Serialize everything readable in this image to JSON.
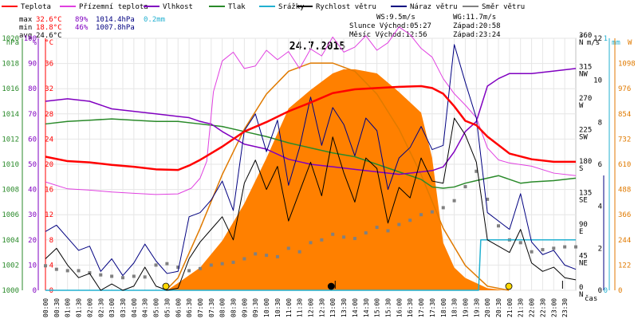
{
  "legend": [
    {
      "label": "Teplota",
      "color": "#ff0000"
    },
    {
      "label": "Přízemní teplota",
      "color": "#e040e0"
    },
    {
      "label": "Vlhkost",
      "color": "#8000c0"
    },
    {
      "label": "Tlak",
      "color": "#2a8a2a"
    },
    {
      "label": "Srážky",
      "color": "#22b0d0"
    },
    {
      "label": "Rychlost větru",
      "color": "#000000"
    },
    {
      "label": "Náraz větru",
      "color": "#000080"
    },
    {
      "label": "Směr větru",
      "color": "#808080"
    }
  ],
  "stats": {
    "max_label": "max",
    "min_label": "min",
    "avg_label": "avg",
    "max_temp": "32.6°C",
    "max_hum": "89%",
    "max_press": "1014.4hPa",
    "max_rain": "0.2mm",
    "min_temp": "18.8°C",
    "min_hum": "46%",
    "min_press": "1007.8hPa",
    "avg_temp": "24.6°C"
  },
  "wind_info": {
    "ws": "WS:9.5m/s",
    "wg": "WG:11.7m/s",
    "sun_rise": "Slunce Východ:05:27",
    "sun_set": "Západ:20:58",
    "moon_rise": "Měsíc  Východ:12:56",
    "moon_set": "Západ:23:24"
  },
  "chart_data": {
    "type": "line",
    "title": "24.7.2015",
    "x_axis_label": "čas",
    "x_ticks": [
      "00:00",
      "00:30",
      "01:00",
      "01:30",
      "02:00",
      "02:30",
      "03:00",
      "03:30",
      "04:00",
      "04:30",
      "05:00",
      "05:30",
      "06:00",
      "06:30",
      "07:00",
      "07:30",
      "08:00",
      "08:30",
      "09:00",
      "09:30",
      "10:00",
      "10:30",
      "11:00",
      "11:30",
      "12:00",
      "12:30",
      "13:00",
      "13:30",
      "14:00",
      "14:30",
      "15:00",
      "15:30",
      "16:00",
      "16:30",
      "17:00",
      "17:30",
      "18:00",
      "18:30",
      "19:00",
      "19:30",
      "20:00",
      "20:30",
      "21:00",
      "21:30",
      "22:00",
      "22:30",
      "23:00",
      "23:30"
    ],
    "axes": {
      "hpa": {
        "label": "hPa",
        "color": "#2a8a2a",
        "range": [
          1000,
          1020
        ],
        "ticks": [
          "1000",
          "1002",
          "1004",
          "1006",
          "1008",
          "1010",
          "1012",
          "1014",
          "1016",
          "1018",
          "1020"
        ]
      },
      "pct": {
        "label": "%",
        "color": "#8000c0",
        "range": [
          0,
          100
        ],
        "ticks": [
          "0",
          "10",
          "20",
          "30",
          "40",
          "50",
          "60",
          "70",
          "80",
          "90",
          "100"
        ]
      },
      "temp": {
        "label": "°C",
        "color": "#ff0000",
        "range": [
          0,
          40
        ],
        "ticks": [
          "0",
          "4",
          "8",
          "12",
          "16",
          "20",
          "24",
          "28",
          "32",
          "36"
        ]
      },
      "dir": {
        "label": "°",
        "range": [
          0,
          360
        ],
        "ticks": [
          {
            "deg": "0",
            "name": "N"
          },
          {
            "deg": "45",
            "name": "NE"
          },
          {
            "deg": "90",
            "name": "E"
          },
          {
            "deg": "135",
            "name": "SE"
          },
          {
            "deg": "180",
            "name": "S"
          },
          {
            "deg": "225",
            "name": "SW"
          },
          {
            "deg": "270",
            "name": "W"
          },
          {
            "deg": "315",
            "name": "NW"
          },
          {
            "deg": "360",
            "name": "N"
          }
        ]
      },
      "ms": {
        "label": "m/s",
        "range": [
          0,
          12
        ],
        "ticks": [
          "0",
          "2",
          "4",
          "6",
          "8",
          "10",
          "12"
        ]
      },
      "mm": {
        "label": "mm",
        "color": "#22b0d0",
        "range": [
          0,
          1
        ],
        "ticks": [
          "0",
          "1"
        ]
      },
      "w": {
        "label": "W",
        "color": "#e07a00",
        "range": [
          0,
          1220
        ],
        "ticks": [
          "0",
          "122",
          "244",
          "366",
          "488",
          "610",
          "732",
          "854",
          "976",
          "1098"
        ]
      }
    },
    "series": [
      {
        "name": "Teplota",
        "axis": "temp",
        "color": "#ff0000",
        "x": [
          0,
          1,
          2,
          3,
          4,
          5,
          6,
          6.5,
          7,
          8,
          9,
          10,
          11,
          12,
          13,
          14,
          15,
          16,
          17,
          17.5,
          18,
          18.5,
          19,
          19.5,
          20,
          21,
          22,
          23,
          24
        ],
        "y": [
          21.2,
          20.5,
          20.3,
          19.9,
          19.6,
          19.2,
          19.1,
          19.8,
          20.7,
          22.8,
          25.2,
          26.7,
          28.4,
          29.8,
          31.3,
          31.9,
          32.1,
          32.3,
          32.4,
          32.1,
          31.2,
          29.2,
          26.9,
          26.2,
          24.4,
          21.7,
          20.8,
          20.4,
          20.4
        ]
      },
      {
        "name": "Přízemní teplota",
        "axis": "temp",
        "color": "#e040e0",
        "x": [
          0,
          1,
          2,
          3,
          4,
          5,
          6,
          6.6,
          7,
          7.3,
          7.6,
          8,
          8.5,
          9,
          9.5,
          10,
          10.5,
          11,
          11.5,
          12,
          12.5,
          13,
          13.5,
          14,
          14.5,
          15,
          15.5,
          16,
          16.5,
          17,
          17.5,
          18,
          18.5,
          19,
          19.5,
          20,
          20.5,
          21,
          22,
          23,
          24
        ],
        "y": [
          17.2,
          16.1,
          15.9,
          15.6,
          15.4,
          15.2,
          15.3,
          16.2,
          17.8,
          20.5,
          31.5,
          36.4,
          37.8,
          35.2,
          35.6,
          38.1,
          36.6,
          37.9,
          35.2,
          38.3,
          37.2,
          40.2,
          37.8,
          38.6,
          40.4,
          38.1,
          39.3,
          41.8,
          40.6,
          38.4,
          37.0,
          33.6,
          31.2,
          29.4,
          27.4,
          22.6,
          20.7,
          20.2,
          19.7,
          18.6,
          18.2
        ]
      },
      {
        "name": "Vlhkost",
        "axis": "pct",
        "color": "#8000c0",
        "x": [
          0,
          1,
          2,
          3,
          4,
          5,
          6,
          6.5,
          7,
          7.5,
          8,
          9,
          10,
          11,
          12,
          13,
          14,
          15,
          16,
          17,
          17.5,
          18,
          18.5,
          19,
          19.5,
          20,
          20.5,
          21,
          22,
          23,
          24
        ],
        "y": [
          75,
          76,
          75,
          72,
          71,
          70,
          69,
          68.5,
          67,
          66,
          63,
          58,
          56,
          52,
          50,
          49,
          48,
          47,
          46,
          47,
          47.5,
          49,
          55,
          63,
          67,
          81,
          84,
          86,
          86,
          87,
          88
        ]
      },
      {
        "name": "Tlak",
        "axis": "hpa",
        "color": "#2a8a2a",
        "x": [
          0,
          1,
          2,
          3,
          4,
          5,
          6,
          7,
          8,
          9,
          10,
          11,
          12,
          13,
          14,
          15,
          16,
          17,
          17.5,
          18,
          18.5,
          19,
          19.5,
          20,
          20.5,
          21,
          21.5,
          22,
          23,
          24
        ],
        "y": [
          1013.2,
          1013.4,
          1013.5,
          1013.6,
          1013.5,
          1013.4,
          1013.4,
          1013.2,
          1013.0,
          1012.6,
          1012.2,
          1011.7,
          1011.3,
          1010.9,
          1010.6,
          1010.0,
          1009.4,
          1008.8,
          1008.2,
          1008.1,
          1008.2,
          1008.5,
          1008.7,
          1008.9,
          1009.1,
          1008.8,
          1008.5,
          1008.6,
          1008.7,
          1008.9
        ]
      },
      {
        "name": "Rychlost větru",
        "axis": "ms",
        "color": "#000000",
        "x": [
          0,
          0.5,
          1,
          1.5,
          2,
          2.5,
          3,
          3.5,
          4,
          4.5,
          5,
          5.5,
          6,
          6.5,
          7,
          7.5,
          8,
          8.5,
          9,
          9.5,
          10,
          10.5,
          11,
          11.5,
          12,
          12.5,
          13,
          13.5,
          14,
          14.5,
          15,
          15.5,
          16,
          16.5,
          17,
          17.5,
          18,
          18.5,
          19,
          19.5,
          20,
          20.5,
          21,
          21.5,
          22,
          22.5,
          23,
          23.5,
          24
        ],
        "y": [
          1.5,
          2.0,
          1.2,
          0.6,
          0.8,
          0.0,
          0.3,
          0.0,
          0.2,
          1.1,
          0.2,
          0.0,
          0.1,
          1.5,
          2.3,
          2.9,
          3.5,
          2.4,
          5.1,
          6.2,
          4.8,
          5.9,
          3.3,
          4.7,
          6.1,
          4.5,
          7.3,
          5.6,
          4.2,
          6.3,
          5.8,
          3.2,
          4.9,
          4.4,
          6.3,
          5.2,
          5.1,
          8.2,
          7.4,
          6.1,
          2.4,
          2.1,
          1.8,
          2.9,
          1.3,
          0.9,
          1.1,
          0.6,
          0.5
        ]
      },
      {
        "name": "Náraz větru",
        "axis": "ms",
        "color": "#000080",
        "x": [
          0,
          0.5,
          1,
          1.5,
          2,
          2.5,
          3,
          3.5,
          4,
          4.5,
          5,
          5.5,
          6,
          6.5,
          7,
          7.5,
          8,
          8.5,
          9,
          9.5,
          10,
          10.5,
          11,
          11.5,
          12,
          12.5,
          13,
          13.5,
          14,
          14.5,
          15,
          15.5,
          16,
          16.5,
          17,
          17.5,
          18,
          18.5,
          19,
          19.5,
          20,
          20.5,
          21,
          21.5,
          22,
          22.5,
          23,
          23.5,
          24
        ],
        "y": [
          2.8,
          3.1,
          2.5,
          1.9,
          2.1,
          0.9,
          1.5,
          0.7,
          1.3,
          2.2,
          1.4,
          0.8,
          0.9,
          3.5,
          3.7,
          4.3,
          5.2,
          3.8,
          7.6,
          8.4,
          6.6,
          8.1,
          5.0,
          6.8,
          9.2,
          6.9,
          8.7,
          7.9,
          6.4,
          8.2,
          7.6,
          4.8,
          6.3,
          6.8,
          7.8,
          6.7,
          6.9,
          11.7,
          9.9,
          8.2,
          3.7,
          3.3,
          2.9,
          4.6,
          2.3,
          1.7,
          1.9,
          1.2,
          1.0
        ]
      },
      {
        "name": "Srážky",
        "axis": "mm",
        "color": "#22b0d0",
        "x": [
          0,
          19.6,
          19.7,
          21,
          21.2,
          24
        ],
        "y": [
          0,
          0,
          0.2,
          0.2,
          0.2,
          0.2
        ]
      },
      {
        "name": "Solar",
        "axis": "w",
        "color": "#ff8000",
        "x": [
          5.5,
          6,
          7,
          8,
          9,
          10,
          11,
          12,
          13,
          13.5,
          14,
          15,
          16,
          17,
          17.5,
          18,
          18.5,
          19,
          20,
          20.8
        ],
        "y": [
          0,
          35,
          110,
          240,
          420,
          640,
          880,
          970,
          1050,
          1070,
          1070,
          1050,
          960,
          860,
          640,
          230,
          110,
          60,
          10,
          0
        ]
      },
      {
        "name": "Solar max",
        "axis": "w",
        "color": "#ff8000",
        "x": [
          5.45,
          6,
          7,
          8,
          9,
          10,
          11,
          12,
          13,
          14,
          15,
          16,
          17,
          18,
          19,
          20,
          20.97
        ],
        "y": [
          0,
          60,
          300,
          560,
          780,
          950,
          1060,
          1100,
          1100,
          1060,
          950,
          780,
          560,
          300,
          120,
          20,
          0
        ]
      },
      {
        "name": "Směr větru",
        "axis": "dir",
        "color": "#808080",
        "x": [
          0,
          0.5,
          1,
          1.5,
          2,
          2.5,
          3,
          3.5,
          4,
          4.5,
          5,
          5.5,
          6,
          6.5,
          7,
          7.5,
          8,
          8.5,
          9,
          9.5,
          10,
          10.5,
          11,
          11.5,
          12,
          12.5,
          13,
          13.5,
          14,
          14.5,
          15,
          15.5,
          16,
          16.5,
          17,
          17.5,
          18,
          18.5,
          19,
          19.5,
          20,
          20.5,
          21,
          21.5,
          22,
          22.5,
          23,
          23.5,
          24
        ],
        "y": [
          35,
          30,
          28,
          28,
          25,
          22,
          20,
          18,
          20,
          19,
          36,
          38,
          33,
          28,
          31,
          36,
          38,
          40,
          45,
          52,
          50,
          48,
          60,
          55,
          68,
          72,
          80,
          76,
          74,
          82,
          90,
          85,
          94,
          100,
          108,
          112,
          118,
          128,
          148,
          170,
          130,
          92,
          72,
          68,
          55,
          58,
          60,
          62,
          62
        ]
      }
    ],
    "markers": {
      "sunrise_hour": 5.45,
      "sunset_hour": 20.97,
      "moonrise_hour": 12.93,
      "moonset_hour": 23.4
    }
  }
}
